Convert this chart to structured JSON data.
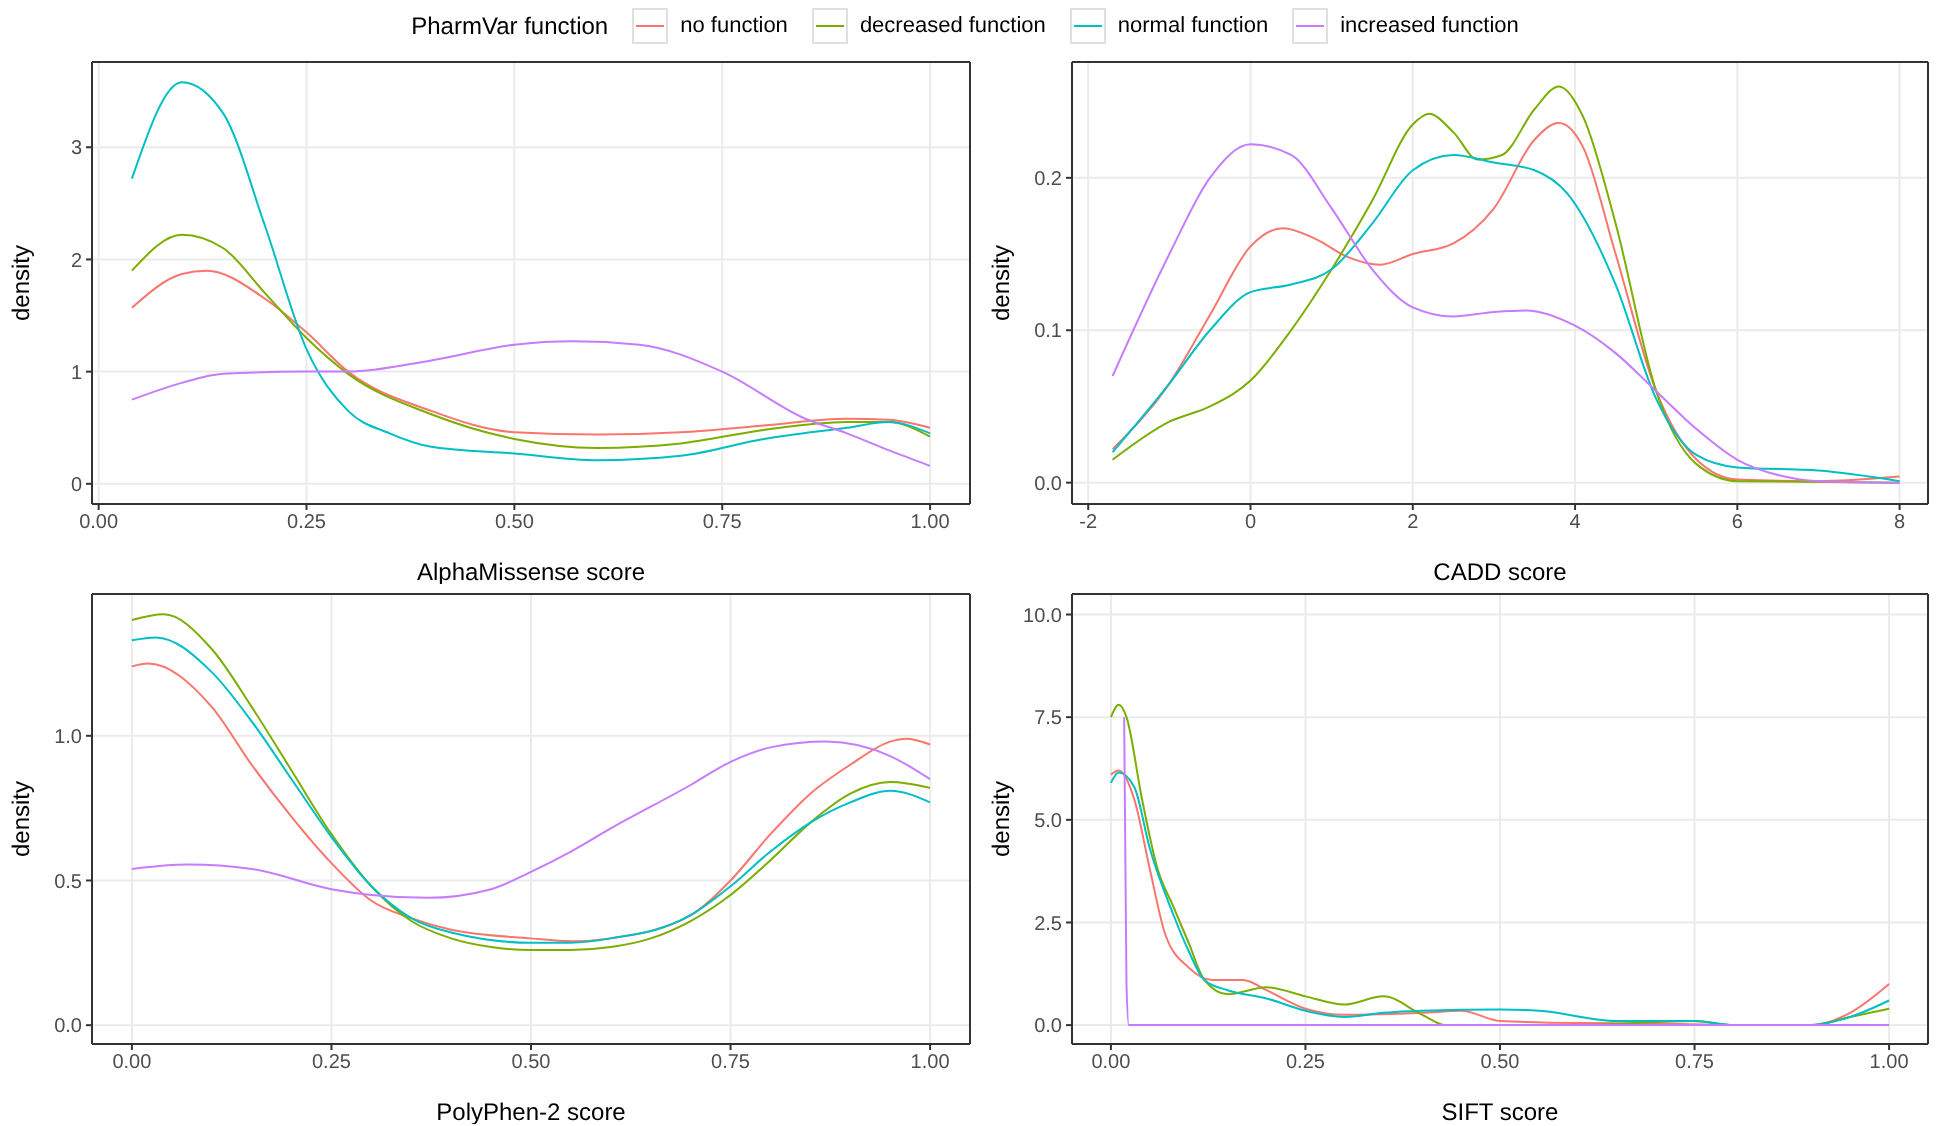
{
  "chart_data": [
    {
      "type": "line",
      "xlabel": "AlphaMissense score",
      "ylabel": "density",
      "legend_title": "PharmVar function",
      "legend": "top",
      "grid": true,
      "xlim": [
        -0.008,
        1.048
      ],
      "ylim": [
        -0.18,
        3.76
      ],
      "xticks": [
        {
          "value": 0,
          "label": "0.00"
        },
        {
          "value": 0.25,
          "label": "0.25"
        },
        {
          "value": 0.5,
          "label": "0.50"
        },
        {
          "value": 0.75,
          "label": "0.75"
        },
        {
          "value": 1,
          "label": "1.00"
        }
      ],
      "yticks": [
        0,
        1,
        2,
        3
      ],
      "series": [
        {
          "name": "no function",
          "color": "#f8766d",
          "x": [
            0.04,
            0.1,
            0.13,
            0.2,
            0.25,
            0.3,
            0.4,
            0.5,
            0.6,
            0.7,
            0.8,
            0.9,
            0.95,
            1.0
          ],
          "values": [
            1.57,
            1.87,
            1.9,
            1.65,
            1.35,
            1.0,
            0.65,
            0.46,
            0.44,
            0.46,
            0.52,
            0.58,
            0.57,
            0.5
          ]
        },
        {
          "name": "decreased function",
          "color": "#7cae00",
          "x": [
            0.04,
            0.1,
            0.15,
            0.2,
            0.25,
            0.3,
            0.4,
            0.5,
            0.6,
            0.7,
            0.8,
            0.9,
            0.95,
            1.0
          ],
          "values": [
            1.9,
            2.22,
            2.1,
            1.7,
            1.3,
            0.98,
            0.62,
            0.4,
            0.32,
            0.36,
            0.48,
            0.55,
            0.55,
            0.42
          ]
        },
        {
          "name": "normal function",
          "color": "#00bfc4",
          "x": [
            0.04,
            0.1,
            0.15,
            0.2,
            0.25,
            0.3,
            0.35,
            0.4,
            0.5,
            0.6,
            0.7,
            0.8,
            0.9,
            0.95,
            1.0
          ],
          "values": [
            2.72,
            3.58,
            3.3,
            2.3,
            1.2,
            0.65,
            0.45,
            0.33,
            0.27,
            0.21,
            0.25,
            0.4,
            0.5,
            0.55,
            0.45
          ]
        },
        {
          "name": "increased function",
          "color": "#c77cff",
          "x": [
            0.04,
            0.1,
            0.15,
            0.25,
            0.3,
            0.4,
            0.5,
            0.57,
            0.65,
            0.75,
            0.85,
            0.9,
            0.95,
            1.0
          ],
          "values": [
            0.75,
            0.9,
            0.98,
            1.0,
            1.0,
            1.1,
            1.24,
            1.27,
            1.24,
            1.0,
            0.58,
            0.45,
            0.3,
            0.16
          ]
        }
      ]
    },
    {
      "type": "line",
      "xlabel": "CADD score",
      "ylabel": "density",
      "grid": true,
      "xlim": [
        -2.2,
        8.35
      ],
      "ylim": [
        -0.014,
        0.276
      ],
      "xticks": [
        -2,
        0,
        2,
        4,
        6,
        8
      ],
      "yticks": [
        {
          "value": 0,
          "label": "0.0"
        },
        {
          "value": 0.1,
          "label": "0.1"
        },
        {
          "value": 0.2,
          "label": "0.2"
        }
      ],
      "series": [
        {
          "color": "#f8766d",
          "x": [
            -1.7,
            -1,
            -0.5,
            0,
            0.4,
            0.8,
            1.2,
            1.6,
            2,
            2.5,
            3,
            3.5,
            3.8,
            4.1,
            4.5,
            5,
            5.5,
            6,
            7,
            8
          ],
          "values": [
            0.022,
            0.065,
            0.11,
            0.155,
            0.167,
            0.16,
            0.148,
            0.143,
            0.15,
            0.157,
            0.18,
            0.225,
            0.236,
            0.22,
            0.15,
            0.06,
            0.015,
            0.002,
            0.001,
            0.004
          ]
        },
        {
          "color": "#7cae00",
          "x": [
            -1.7,
            -1,
            -0.5,
            0,
            0.5,
            1,
            1.5,
            2,
            2.2,
            2.5,
            2.8,
            3.1,
            3.5,
            3.8,
            4.1,
            4.5,
            5,
            5.5,
            6,
            8
          ],
          "values": [
            0.015,
            0.04,
            0.05,
            0.067,
            0.1,
            0.14,
            0.185,
            0.235,
            0.242,
            0.23,
            0.212,
            0.215,
            0.245,
            0.26,
            0.24,
            0.17,
            0.06,
            0.012,
            0.001,
            0.0
          ]
        },
        {
          "color": "#00bfc4",
          "x": [
            -1.7,
            -1,
            -0.5,
            0,
            0.5,
            1,
            1.5,
            2,
            2.5,
            3,
            3.5,
            3.9,
            4.5,
            5,
            5.5,
            6,
            7,
            8
          ],
          "values": [
            0.02,
            0.065,
            0.1,
            0.125,
            0.13,
            0.14,
            0.17,
            0.205,
            0.215,
            0.21,
            0.205,
            0.19,
            0.13,
            0.055,
            0.018,
            0.01,
            0.008,
            0.001
          ]
        },
        {
          "color": "#c77cff",
          "x": [
            -1.7,
            -1,
            -0.5,
            0,
            0.5,
            1,
            1.5,
            2,
            2.5,
            3,
            3.4,
            4,
            4.5,
            5,
            5.5,
            6,
            6.5,
            7,
            8
          ],
          "values": [
            0.07,
            0.15,
            0.2,
            0.222,
            0.215,
            0.18,
            0.14,
            0.115,
            0.109,
            0.112,
            0.113,
            0.103,
            0.085,
            0.06,
            0.035,
            0.015,
            0.005,
            0.001,
            0.0
          ]
        }
      ]
    },
    {
      "type": "line",
      "xlabel": "PolyPhen-2 score",
      "ylabel": "density",
      "grid": true,
      "xlim": [
        -0.05,
        1.05
      ],
      "ylim": [
        -0.065,
        1.49
      ],
      "xticks": [
        {
          "value": 0,
          "label": "0.00"
        },
        {
          "value": 0.25,
          "label": "0.25"
        },
        {
          "value": 0.5,
          "label": "0.50"
        },
        {
          "value": 0.75,
          "label": "0.75"
        },
        {
          "value": 1,
          "label": "1.00"
        }
      ],
      "yticks": [
        {
          "value": 0,
          "label": "0.0"
        },
        {
          "value": 0.5,
          "label": "0.5"
        },
        {
          "value": 1,
          "label": "1.0"
        }
      ],
      "series": [
        {
          "color": "#f8766d",
          "x": [
            0,
            0.02,
            0.1,
            0.15,
            0.2,
            0.25,
            0.3,
            0.35,
            0.4,
            0.5,
            0.55,
            0.6,
            0.7,
            0.75,
            0.8,
            0.85,
            0.9,
            0.95,
            0.97,
            1.0
          ],
          "values": [
            1.24,
            1.25,
            1.1,
            0.9,
            0.72,
            0.56,
            0.43,
            0.37,
            0.33,
            0.3,
            0.29,
            0.3,
            0.38,
            0.5,
            0.66,
            0.8,
            0.9,
            0.98,
            0.99,
            0.97
          ]
        },
        {
          "color": "#7cae00",
          "x": [
            0,
            0.04,
            0.1,
            0.15,
            0.2,
            0.25,
            0.3,
            0.35,
            0.4,
            0.45,
            0.5,
            0.55,
            0.6,
            0.65,
            0.7,
            0.75,
            0.8,
            0.85,
            0.9,
            0.95,
            1.0
          ],
          "values": [
            1.4,
            1.42,
            1.3,
            1.1,
            0.88,
            0.66,
            0.48,
            0.36,
            0.3,
            0.27,
            0.26,
            0.26,
            0.27,
            0.3,
            0.36,
            0.45,
            0.57,
            0.7,
            0.8,
            0.84,
            0.82
          ]
        },
        {
          "color": "#00bfc4",
          "x": [
            0,
            0.03,
            0.1,
            0.15,
            0.2,
            0.25,
            0.3,
            0.35,
            0.4,
            0.5,
            0.55,
            0.6,
            0.7,
            0.75,
            0.8,
            0.85,
            0.9,
            0.95,
            1.0
          ],
          "values": [
            1.33,
            1.34,
            1.22,
            1.05,
            0.85,
            0.65,
            0.48,
            0.37,
            0.32,
            0.285,
            0.285,
            0.3,
            0.38,
            0.48,
            0.6,
            0.7,
            0.77,
            0.81,
            0.77
          ]
        },
        {
          "color": "#c77cff",
          "x": [
            0,
            0.07,
            0.15,
            0.25,
            0.3,
            0.37,
            0.45,
            0.5,
            0.55,
            0.6,
            0.7,
            0.75,
            0.8,
            0.87,
            0.95,
            1.0
          ],
          "values": [
            0.54,
            0.555,
            0.54,
            0.47,
            0.45,
            0.44,
            0.47,
            0.53,
            0.6,
            0.68,
            0.83,
            0.91,
            0.96,
            0.98,
            0.93,
            0.85
          ]
        }
      ]
    },
    {
      "type": "line",
      "xlabel": "SIFT score",
      "ylabel": "density",
      "grid": true,
      "xlim": [
        -0.05,
        1.05
      ],
      "ylim": [
        -0.46,
        10.5
      ],
      "xticks": [
        {
          "value": 0,
          "label": "0.00"
        },
        {
          "value": 0.25,
          "label": "0.25"
        },
        {
          "value": 0.5,
          "label": "0.50"
        },
        {
          "value": 0.75,
          "label": "0.75"
        },
        {
          "value": 1,
          "label": "1.00"
        }
      ],
      "yticks": [
        {
          "value": 0,
          "label": "0.0"
        },
        {
          "value": 2.5,
          "label": "2.5"
        },
        {
          "value": 5,
          "label": "5.0"
        },
        {
          "value": 7.5,
          "label": "7.5"
        },
        {
          "value": 10,
          "label": "10.0"
        }
      ],
      "series": [
        {
          "color": "#f8766d",
          "x": [
            0,
            0.01,
            0.03,
            0.05,
            0.07,
            0.1,
            0.13,
            0.17,
            0.2,
            0.25,
            0.3,
            0.4,
            0.45,
            0.5,
            0.6,
            0.7,
            0.8,
            0.9,
            0.95,
            1.0
          ],
          "values": [
            6.1,
            6.2,
            5.5,
            3.8,
            2.2,
            1.4,
            1.1,
            1.1,
            0.85,
            0.4,
            0.25,
            0.3,
            0.35,
            0.1,
            0.05,
            0.04,
            0.0,
            0.0,
            0.3,
            1.0
          ]
        },
        {
          "color": "#7cae00",
          "x": [
            0,
            0.01,
            0.02,
            0.04,
            0.06,
            0.08,
            0.1,
            0.12,
            0.15,
            0.2,
            0.25,
            0.3,
            0.35,
            0.4,
            0.43,
            0.6,
            0.75,
            0.8,
            0.9,
            0.95,
            1.0
          ],
          "values": [
            7.5,
            7.8,
            7.5,
            5.5,
            3.8,
            2.9,
            2.0,
            1.1,
            0.75,
            0.92,
            0.7,
            0.5,
            0.7,
            0.25,
            0.0,
            0.0,
            0.1,
            0.0,
            0.0,
            0.2,
            0.4
          ]
        },
        {
          "color": "#00bfc4",
          "x": [
            0,
            0.01,
            0.03,
            0.05,
            0.08,
            0.1,
            0.12,
            0.15,
            0.2,
            0.25,
            0.3,
            0.35,
            0.4,
            0.5,
            0.55,
            0.65,
            0.75,
            0.8,
            0.9,
            0.95,
            1.0
          ],
          "values": [
            5.9,
            6.15,
            5.8,
            4.3,
            2.7,
            1.8,
            1.1,
            0.85,
            0.65,
            0.35,
            0.2,
            0.3,
            0.35,
            0.38,
            0.35,
            0.1,
            0.1,
            0.0,
            0.0,
            0.2,
            0.6
          ]
        },
        {
          "color": "#c77cff",
          "x": [
            0.017,
            0.02,
            0.023,
            1.0
          ],
          "values": [
            7.5,
            1.0,
            0.0,
            0.0
          ]
        }
      ]
    }
  ]
}
